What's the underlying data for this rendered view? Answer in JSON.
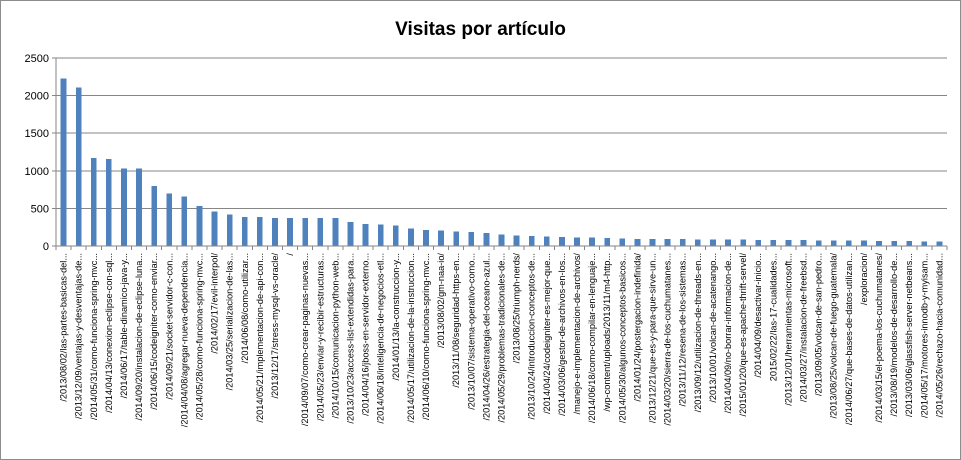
{
  "chart_data": {
    "type": "bar",
    "title": "Visitas por artículo",
    "xlabel": "",
    "ylabel": "",
    "ylim": [
      0,
      2500
    ],
    "yticks": [
      0,
      500,
      1000,
      1500,
      2000,
      2500
    ],
    "grid": true,
    "legend": "none",
    "bar_color": "#4f81bd",
    "categories": [
      "/2013/08/02/las-partes-basicas-del...",
      "/2013/12/09/ventajas-y-desventajas-de...",
      "/2014/05/31/como-funciona-spring-mvc...",
      "/2014/04/13/conexion-eclipse-con-sql...",
      "/2014/06/17/table-dinamico-java-y...",
      "/2014/09/20/instalacion-de-eclipse-luna...",
      "/2014/06/15/codeigniter-como-enviar...",
      "/2014/09/21/socket-servidor-c-con...",
      "/2014/04/08/agregar-nueva-dependencia...",
      "/2014/05/28/como-funciona-spring-mvc...",
      "/2014/02/17/evil-interpol/",
      "/2014/03/25/serializacion-de-las...",
      "/2014/06/08/como-utilizar...",
      "/2014/05/21/implementacion-de-api-con...",
      "/2013/12/17/stress-mysql-vs-oracle/",
      "/",
      "/2014/09/07/como-crear-paginas-nuevas...",
      "/2014/05/23/enviar-y-recibir-estructuras...",
      "/2014/10/15/comunicacion-python-web...",
      "/2013/10/23/access-list-extendidas-para...",
      "/2014/04/16/jboss-en-servidor-externo...",
      "/2014/06/18/inteligencia-de-negocios-etl...",
      "/2014/01/13/la-construccion-y...",
      "/2014/05/17/utilizacion-de-la-instruccion...",
      "/2014/06/10/como-funciona-spring-mvc...",
      "/2013/08/02/gm-naa-io/",
      "/2013/11/08/seguridad-https-en...",
      "/2013/10/07/sistema-operativo-como...",
      "/2014/04/26/estrategia-del-oceano-azul...",
      "/2014/05/29/problemas-tradicionales-de...",
      "/2013/08/25/triumph-nerds/",
      "/2013/10/24/introduccion-conceptos-de...",
      "/2014/04/24/codeigniter-es-mejor-que...",
      "/2014/03/06/gestor-de-archivos-en-los...",
      "/manejo-e-implementacion-de-archivos/",
      "/2014/06/18/como-compilar-en-lenguaje...",
      "/wp-content/uploads/2013/11/m4-http...",
      "/2014/05/30/algunos-conceptos-basicos...",
      "/2014/01/24/postergacion-indefinida/",
      "/2013/12/21/que-es-y-para-que-sirve-un...",
      "/2014/03/20/sierra-de-los-cuchumatanes...",
      "/2013/11/12/resena-de-los-sistemas...",
      "/2013/09/12/utilizacion-de-threads-en...",
      "/2013/10/01/volcan-de-acatenango...",
      "/2014/04/09/no-borrar-informacion-de...",
      "/2015/01/20/que-es-apache-thrift-servel/",
      "/2014/04/09/desactivar-inicio...",
      "2015/02/22/las-17-cualidades...",
      "/2013/12/01/herramientas-microsoft...",
      "/2014/03/27/instalacion-de-freebsd...",
      "/2013/09/05/volcan-de-san-pedro...",
      "/2013/08/25/volcan-de-fuego-guatemala/",
      "/2014/06/27/que-bases-de-datos-utilizan...",
      "/exploracion/",
      "/2014/03/15/el-poema-los-cuchumatanes/",
      "/2013/08/19/modelos-de-desarrollo-de...",
      "/2013/03/06/glassfish-server-netbeans...",
      "/2014/05/17/motores-innodb-y-myisam...",
      "/2014/05/26/rechazo-hacia-comunidad..."
    ],
    "values": [
      2230,
      2110,
      1170,
      1160,
      1030,
      1030,
      800,
      700,
      660,
      530,
      460,
      420,
      385,
      385,
      375,
      370,
      370,
      370,
      370,
      320,
      295,
      285,
      270,
      235,
      210,
      205,
      195,
      185,
      170,
      150,
      140,
      130,
      125,
      120,
      115,
      110,
      105,
      100,
      95,
      95,
      92,
      90,
      88,
      87,
      85,
      85,
      83,
      80,
      78,
      77,
      75,
      72,
      70,
      70,
      68,
      65,
      65,
      63,
      62
    ]
  }
}
